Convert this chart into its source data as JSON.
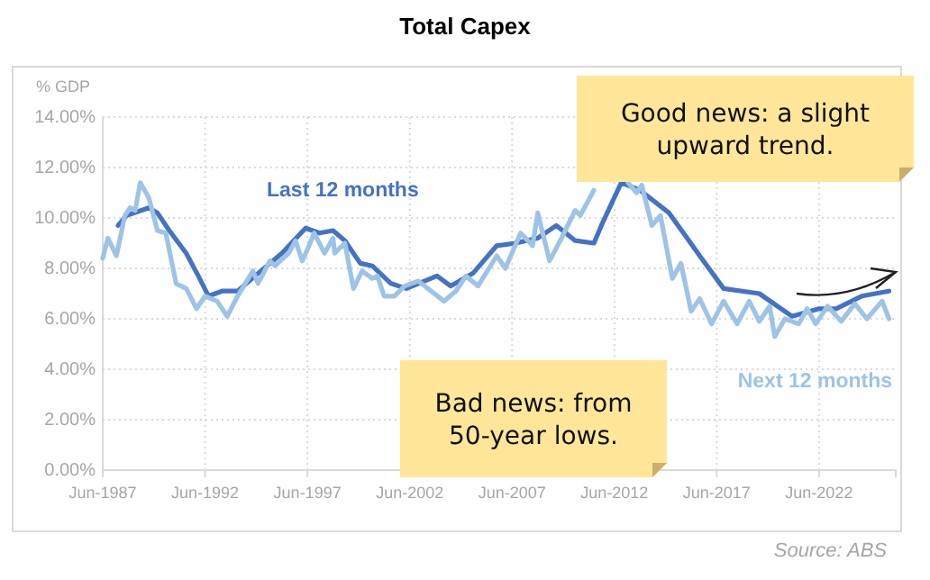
{
  "chart_data": {
    "type": "line",
    "title": "Total Capex",
    "ylabel": "% GDP",
    "xlim": [
      "1987-06",
      "2026-03"
    ],
    "xticks": [
      {
        "value": "1987-06",
        "label": "Jun-1987"
      },
      {
        "value": "1992-06",
        "label": "Jun-1992"
      },
      {
        "value": "1997-06",
        "label": "Jun-1997"
      },
      {
        "value": "2002-06",
        "label": "Jun-2002"
      },
      {
        "value": "2007-06",
        "label": "Jun-2007"
      },
      {
        "value": "2012-06",
        "label": "Jun-2012"
      },
      {
        "value": "2017-06",
        "label": "Jun-2017"
      },
      {
        "value": "2022-06",
        "label": "Jun-2022"
      }
    ],
    "ylim": [
      0,
      14
    ],
    "yticks": [
      {
        "value": 0,
        "label": "0.00%"
      },
      {
        "value": 2,
        "label": "2.00%"
      },
      {
        "value": 4,
        "label": "4.00%"
      },
      {
        "value": 6,
        "label": "6.00%"
      },
      {
        "value": 8,
        "label": "8.00%"
      },
      {
        "value": 10,
        "label": "10.00%"
      },
      {
        "value": 12,
        "label": "12.00%"
      },
      {
        "value": 14,
        "label": "14.00%"
      }
    ],
    "grid": true,
    "marker": "none",
    "line_style": "solid",
    "series": [
      {
        "name": "Last 12 months",
        "color": "#4472c4",
        "x": [
          "1988-03",
          "1988-08",
          "1989-09",
          "1990-02",
          "1990-09",
          "1991-07",
          "1992-02",
          "1992-08",
          "1993-04",
          "1994-01",
          "1995-01",
          "1996-03",
          "1997-05",
          "1998-01",
          "1998-09",
          "1999-04",
          "2000-01",
          "2000-08",
          "2001-07",
          "2002-04",
          "2003-10",
          "2004-06",
          "2005-07",
          "2006-09",
          "2007-08",
          "2008-09",
          "2009-08",
          "2010-07",
          "2011-06",
          "2011-11",
          "2012-10",
          "2013-09",
          "2015-02",
          "2016-08",
          "2017-10",
          "2019-07",
          "2021-02",
          "2022-06",
          "2023-04",
          "2024-07",
          "2025-11"
        ],
        "values": [
          9.7,
          10.1,
          10.4,
          10.2,
          9.5,
          8.6,
          7.7,
          6.9,
          7.1,
          7.1,
          7.8,
          8.6,
          9.6,
          9.4,
          9.5,
          9.1,
          8.2,
          8.1,
          7.4,
          7.2,
          7.7,
          7.3,
          7.8,
          8.9,
          9.0,
          9.2,
          9.7,
          9.1,
          9.0,
          9.8,
          11.4,
          11.1,
          10.2,
          8.5,
          7.2,
          7.0,
          6.1,
          6.4,
          6.4,
          6.9,
          7.1
        ]
      },
      {
        "name": "Next 12 months",
        "color": "#9dc3e6",
        "x": [
          "1987-06",
          "1987-09",
          "1988-02",
          "1988-07",
          "1988-10",
          "1989-01",
          "1989-04",
          "1989-09",
          "1990-02",
          "1990-07",
          "1991-01",
          "1991-07",
          "1992-01",
          "1992-06",
          "1993-01",
          "1993-07",
          "1994-01",
          "1994-10",
          "1995-01",
          "1995-08",
          "1995-11",
          "1996-07",
          "1996-11",
          "1997-03",
          "1997-07",
          "1997-10",
          "1998-04",
          "1998-09",
          "1998-10",
          "1999-04",
          "1999-09",
          "2000-02",
          "2000-08",
          "2000-11",
          "2001-03",
          "2001-09",
          "2002-03",
          "2002-11",
          "2004-02",
          "2004-09",
          "2005-03",
          "2005-10",
          "2006-09",
          "2007-02",
          "2007-11",
          "2008-06",
          "2008-09",
          "2009-04",
          "2009-11",
          "2010-07",
          "2010-10",
          "2011-06",
          "2011-10",
          "2012-06",
          "2013-02",
          "2013-07",
          "2013-10",
          "2014-04",
          "2014-09",
          "2015-04",
          "2015-09",
          "2016-03",
          "2016-08",
          "2017-03",
          "2017-10",
          "2018-06",
          "2019-01",
          "2019-07",
          "2020-01",
          "2020-04",
          "2020-10",
          "2021-06",
          "2021-11",
          "2022-04",
          "2022-11",
          "2023-07",
          "2024-03",
          "2024-10",
          "2025-07",
          "2025-11"
        ],
        "values": [
          8.4,
          9.2,
          8.5,
          10.1,
          10.4,
          10.3,
          11.4,
          10.8,
          9.5,
          9.4,
          7.4,
          7.2,
          6.4,
          6.9,
          6.7,
          6.1,
          6.9,
          7.9,
          7.4,
          8.3,
          8.1,
          8.6,
          9.1,
          8.3,
          8.9,
          9.4,
          8.6,
          9.2,
          8.6,
          9.0,
          7.2,
          7.9,
          7.6,
          7.7,
          6.9,
          6.9,
          7.3,
          7.5,
          6.7,
          7.1,
          7.7,
          7.3,
          8.5,
          8.0,
          9.4,
          8.9,
          10.2,
          8.3,
          9.2,
          10.3,
          10.1,
          11.1,
          null,
          null,
          11.4,
          11.0,
          11.3,
          9.7,
          10.1,
          7.6,
          8.2,
          6.3,
          6.8,
          5.8,
          6.7,
          5.8,
          6.7,
          5.9,
          6.5,
          5.3,
          6.0,
          5.8,
          6.4,
          5.8,
          6.5,
          5.9,
          6.6,
          6.0,
          6.7,
          6.0
        ]
      }
    ],
    "annotations": [
      "Good news: a slight upward trend.",
      "Bad news: from 50-year lows.",
      "Source: ABS"
    ]
  }
}
